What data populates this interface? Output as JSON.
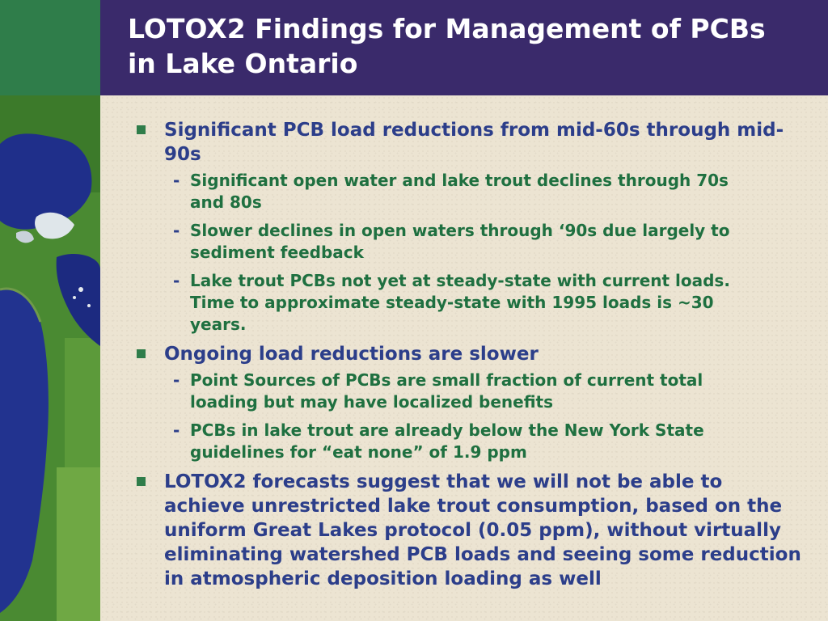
{
  "slide": {
    "title_line1": "LOTOX2 Findings for Management of PCBs",
    "title_line2": "in Lake Ontario",
    "bullets": [
      {
        "text": "Significant PCB load reductions from mid-60s through mid-90s",
        "subs": [
          "Significant open water and lake trout declines through 70s and 80s",
          "Slower declines in open waters through ‘90s due largely to sediment feedback",
          "Lake trout PCBs not yet at steady-state with current loads. Time to approximate steady-state with 1995 loads is ~30 years."
        ]
      },
      {
        "text": "Ongoing load reductions are slower",
        "subs": [
          "Point Sources of PCBs are small fraction of current total loading but may have localized benefits",
          "PCBs in lake trout are already below the New York State guidelines for “eat none” of 1.9 ppm"
        ]
      },
      {
        "text": "LOTOX2 forecasts suggest that we will not be able to achieve unrestricted lake trout consumption, based on the uniform Great Lakes protocol (0.05 ppm), without virtually eliminating watershed PCB loads and seeing some reduction in atmospheric deposition loading as well",
        "subs": []
      }
    ]
  },
  "colors": {
    "title_band": "#3a2a6b",
    "corner": "#2f7d4a",
    "level1_text": "#2c3e8a",
    "level2_text": "#1f7040",
    "bullet_square": "#2f7d4a"
  }
}
